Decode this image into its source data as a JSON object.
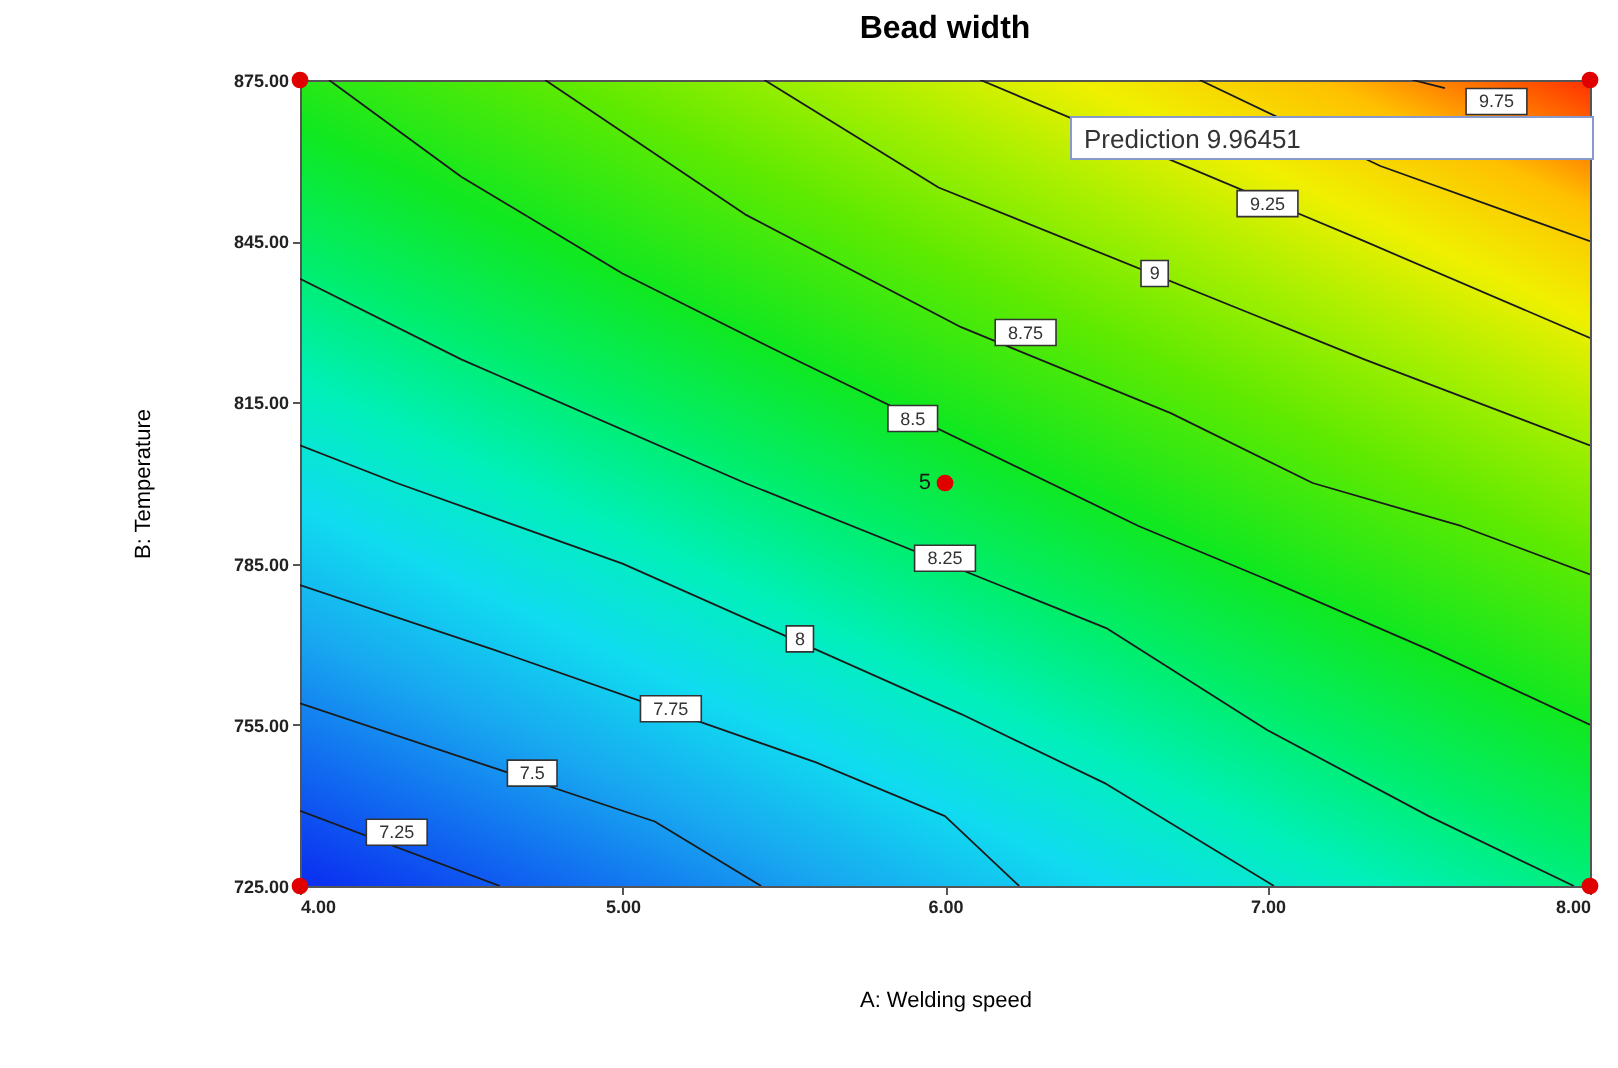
{
  "chart_data": {
    "type": "line",
    "title": "Bead width",
    "xlabel": "A: Welding speed",
    "ylabel": "B: Temperature",
    "xlim": [
      4,
      8
    ],
    "ylim": [
      725,
      875
    ],
    "xticks": [
      {
        "value": 4,
        "label": "4.00"
      },
      {
        "value": 5,
        "label": "5.00"
      },
      {
        "value": 6,
        "label": "6.00"
      },
      {
        "value": 7,
        "label": "7.00"
      },
      {
        "value": 8,
        "label": "8.00"
      }
    ],
    "yticks": [
      {
        "value": 725,
        "label": "725.00"
      },
      {
        "value": 755,
        "label": "755.00"
      },
      {
        "value": 785,
        "label": "785.00"
      },
      {
        "value": 815,
        "label": "815.00"
      },
      {
        "value": 845,
        "label": "845.00"
      },
      {
        "value": 875,
        "label": "875.00"
      }
    ],
    "series": [
      {
        "color": "#1a1a1a",
        "x": [
          4,
          4.62
        ],
        "values": [
          739,
          725
        ]
      },
      {
        "color": "#1a1a1a",
        "x": [
          4,
          5.1,
          5.43
        ],
        "values": [
          759,
          737,
          725
        ]
      },
      {
        "color": "#1a1a1a",
        "x": [
          4,
          4.6,
          5.6,
          6.0,
          6.23
        ],
        "values": [
          781,
          769,
          748,
          738,
          725
        ]
      },
      {
        "color": "#1a1a1a",
        "x": [
          4,
          4.3,
          5.0,
          6.05,
          6.5,
          7.02
        ],
        "values": [
          807,
          800,
          785,
          757,
          744,
          725
        ]
      },
      {
        "color": "#1a1a1a",
        "x": [
          4,
          4.5,
          5.38,
          6.5,
          7.0,
          7.5,
          7.95
        ],
        "values": [
          838,
          823,
          800,
          773,
          754,
          738,
          725
        ]
      },
      {
        "color": "#1a1a1a",
        "x": [
          4.09,
          4.5,
          5.0,
          5.5,
          6.6,
          7.0,
          7.5,
          8
        ],
        "values": [
          875,
          857,
          839,
          824,
          792,
          782,
          769,
          755
        ]
      },
      {
        "color": "#1a1a1a",
        "x": [
          4.76,
          5.38,
          6.05,
          6.7,
          7.14,
          7.6,
          8
        ],
        "values": [
          875,
          850,
          829,
          813,
          800,
          792,
          783
        ]
      },
      {
        "color": "#1a1a1a",
        "x": [
          5.44,
          5.98,
          7.3,
          8
        ],
        "values": [
          875,
          855,
          823,
          807
        ]
      },
      {
        "color": "#1a1a1a",
        "x": [
          6.11,
          7.3,
          8
        ],
        "values": [
          875,
          845,
          827
        ]
      },
      {
        "color": "#1a1a1a",
        "x": [
          6.79,
          7.35,
          8
        ],
        "values": [
          875,
          859,
          845
        ]
      },
      {
        "color": "#1a1a1a",
        "x": [
          7.45,
          7.55
        ],
        "values": [
          875,
          873.5
        ]
      },
      {
        "type": "scatter",
        "color": "#e00000",
        "marker": "circle",
        "x": [
          4,
          8,
          4,
          8,
          6
        ],
        "values": [
          725,
          725,
          875,
          875,
          800
        ]
      }
    ],
    "annotations": [
      {
        "text": "7.25",
        "x": 4.3,
        "y": 735
      },
      {
        "text": "7.5",
        "x": 4.72,
        "y": 746
      },
      {
        "text": "7.75",
        "x": 5.15,
        "y": 758
      },
      {
        "text": "8",
        "x": 5.55,
        "y": 771
      },
      {
        "text": "8.25",
        "x": 6.0,
        "y": 786
      },
      {
        "text": "8.5",
        "x": 5.9,
        "y": 812
      },
      {
        "text": "8.75",
        "x": 6.25,
        "y": 828
      },
      {
        "text": "9",
        "x": 6.65,
        "y": 839
      },
      {
        "text": "9.25",
        "x": 7.0,
        "y": 852
      },
      {
        "text": "9.75",
        "x": 7.71,
        "y": 871
      },
      {
        "text": "5",
        "x": 6,
        "y": 800
      },
      "Prediction 9.96451"
    ]
  }
}
